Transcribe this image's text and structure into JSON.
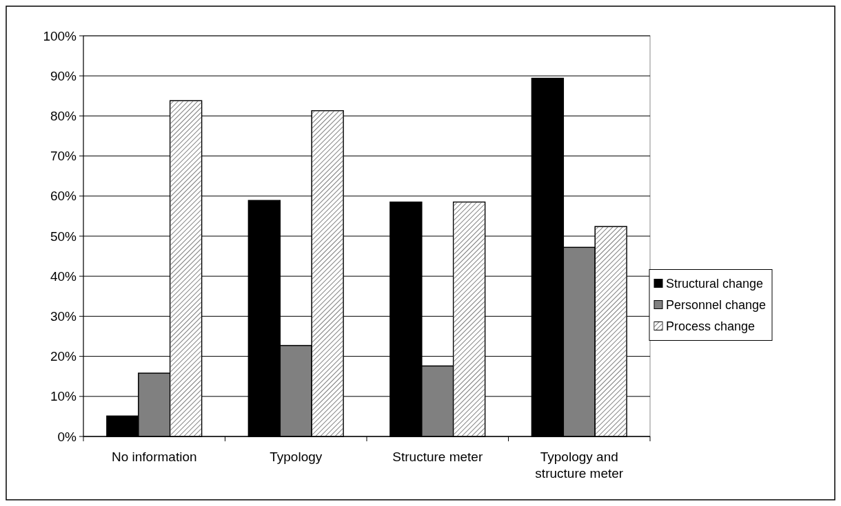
{
  "chart_data": {
    "type": "bar",
    "categories": [
      "No information",
      "Typology",
      "Structure meter",
      "Typology and structure meter"
    ],
    "series": [
      {
        "name": "Structural change",
        "color": "#000000",
        "values": [
          5.1,
          58.9,
          58.5,
          89.4
        ]
      },
      {
        "name": "Personnel change",
        "color": "#808080",
        "values": [
          15.8,
          22.7,
          17.6,
          47.2
        ]
      },
      {
        "name": "Process change",
        "color": "#ffffff",
        "values": [
          83.8,
          81.3,
          58.5,
          52.4
        ]
      }
    ],
    "ylim": [
      0,
      100
    ],
    "yticks": [
      {
        "value": 0,
        "label": "0%"
      },
      {
        "value": 10,
        "label": "10%"
      },
      {
        "value": 20,
        "label": "20%"
      },
      {
        "value": 30,
        "label": "30%"
      },
      {
        "value": 40,
        "label": "40%"
      },
      {
        "value": 50,
        "label": "50%"
      },
      {
        "value": 60,
        "label": "60%"
      },
      {
        "value": 70,
        "label": "70%"
      },
      {
        "value": 80,
        "label": "80%"
      },
      {
        "value": 90,
        "label": "90%"
      },
      {
        "value": 100,
        "label": "100%"
      }
    ],
    "grid": "y",
    "legend": "right"
  }
}
